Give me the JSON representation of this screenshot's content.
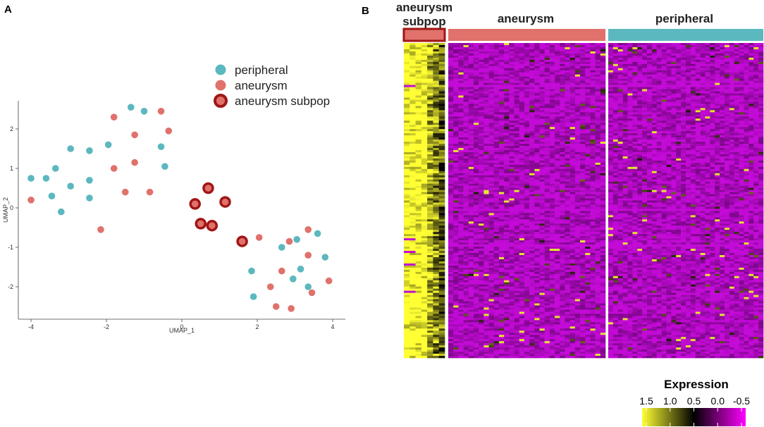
{
  "panels": {
    "a": "A",
    "b": "B"
  },
  "colors": {
    "peripheral": "#5bb8be",
    "aneurysm": "#e0716b",
    "subpop_ring": "#a01616",
    "subpop_fill": "#e0716b"
  },
  "chart_data": [
    {
      "type": "scatter",
      "title": "",
      "xlabel": "UMAP_1",
      "ylabel": "UMAP_2",
      "xlim": [
        -4.3,
        4.3
      ],
      "ylim": [
        -2.9,
        2.9
      ],
      "xticks": [
        -4,
        -2,
        0,
        2,
        4
      ],
      "yticks": [
        -2,
        -1,
        0,
        1,
        2
      ],
      "grid": false,
      "legend": {
        "position": "top-right",
        "entries": [
          "peripheral",
          "aneurysm",
          "aneurysm subpop"
        ]
      },
      "series": [
        {
          "name": "peripheral",
          "points": [
            [
              -4.0,
              0.75
            ],
            [
              -3.6,
              0.75
            ],
            [
              -3.45,
              0.3
            ],
            [
              -3.35,
              1.0
            ],
            [
              -3.2,
              -0.1
            ],
            [
              -2.95,
              1.5
            ],
            [
              -2.95,
              0.55
            ],
            [
              -2.45,
              1.45
            ],
            [
              -2.45,
              0.7
            ],
            [
              -2.45,
              0.25
            ],
            [
              -1.95,
              1.6
            ],
            [
              -1.35,
              2.55
            ],
            [
              -1.0,
              2.45
            ],
            [
              -0.55,
              1.55
            ],
            [
              -0.45,
              1.05
            ],
            [
              1.85,
              -1.6
            ],
            [
              1.9,
              -2.25
            ],
            [
              2.65,
              -1.0
            ],
            [
              3.05,
              -0.8
            ],
            [
              2.95,
              -1.8
            ],
            [
              3.15,
              -1.55
            ],
            [
              3.35,
              -2.0
            ],
            [
              3.6,
              -0.65
            ],
            [
              3.8,
              -1.25
            ]
          ]
        },
        {
          "name": "aneurysm",
          "points": [
            [
              -4.0,
              0.2
            ],
            [
              -2.15,
              -0.55
            ],
            [
              -1.8,
              1.0
            ],
            [
              -1.8,
              2.3
            ],
            [
              -1.5,
              0.4
            ],
            [
              -1.25,
              1.15
            ],
            [
              -1.25,
              1.85
            ],
            [
              -0.85,
              0.4
            ],
            [
              -0.55,
              2.45
            ],
            [
              -0.35,
              1.95
            ],
            [
              2.05,
              -0.75
            ],
            [
              2.35,
              -2.0
            ],
            [
              2.5,
              -2.5
            ],
            [
              2.65,
              -1.6
            ],
            [
              2.85,
              -0.85
            ],
            [
              2.9,
              -2.55
            ],
            [
              3.35,
              -1.2
            ],
            [
              3.35,
              -0.55
            ],
            [
              3.45,
              -2.15
            ],
            [
              3.9,
              -1.85
            ]
          ]
        },
        {
          "name": "aneurysm subpop",
          "points": [
            [
              0.35,
              0.1
            ],
            [
              0.5,
              -0.4
            ],
            [
              0.7,
              0.5
            ],
            [
              0.8,
              -0.45
            ],
            [
              1.15,
              0.15
            ],
            [
              1.6,
              -0.85
            ]
          ]
        }
      ]
    },
    {
      "type": "heatmap",
      "title": "",
      "column_groups": [
        {
          "name": "aneurysm subpop",
          "display_lines": [
            "aneurysm",
            "subpop"
          ],
          "n_columns": 7,
          "annotation_color": "#e0716b",
          "annotation_border": "#a01616"
        },
        {
          "name": "aneurysm",
          "n_columns": 31,
          "annotation_color": "#e0716b"
        },
        {
          "name": "peripheral",
          "n_columns": 32,
          "annotation_color": "#5bb8be"
        }
      ],
      "n_rows": 150,
      "group_mean_expression": {
        "aneurysm subpop": 1.35,
        "aneurysm": -0.4,
        "peripheral": -0.4
      },
      "highlight_rows_subpop_low": [
        20,
        93,
        99,
        105,
        118
      ],
      "colorbar": {
        "title": "Expression",
        "ticks": [
          "1.5",
          "1.0",
          "0.5",
          "0.0",
          "-0.5"
        ],
        "colors": [
          "#ffff33",
          "#000000",
          "#ff00ff"
        ],
        "range": [
          1.5,
          -0.5
        ]
      }
    }
  ]
}
